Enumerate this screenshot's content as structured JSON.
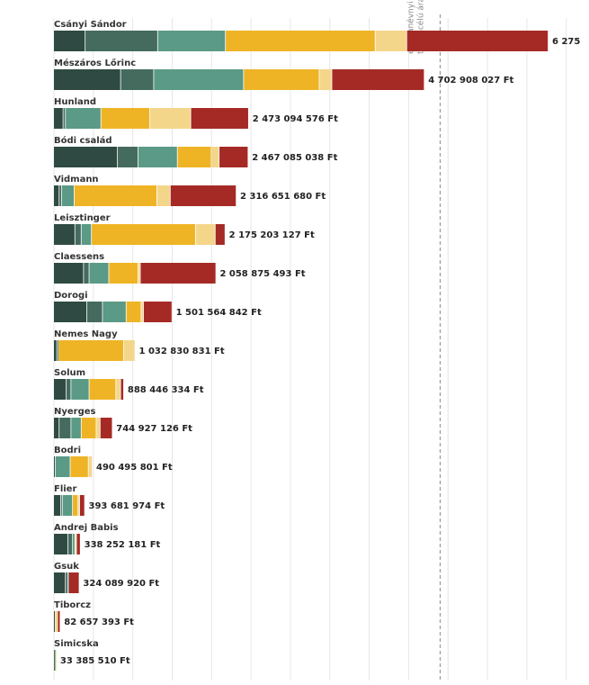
{
  "chart_data": {
    "type": "bar",
    "orientation": "horizontal",
    "stacked": true,
    "grid": true,
    "segment_colors": [
      "#2f4a42",
      "#456b5f",
      "#5a9a86",
      "#efb425",
      "#f4d68a",
      "#a52a25"
    ],
    "reference_line": {
      "value": 4900000000,
      "label": "egy tanévnyi sarkvizsga teremcélú ára",
      "style": "dashed",
      "color": "#999999"
    },
    "companies": [
      {
        "name": "Csányi Sándor",
        "total_label": "6 275",
        "total": 6275000000,
        "segments": [
          400000000,
          920000000,
          860000000,
          1900000000,
          400000000,
          1795000000
        ]
      },
      {
        "name": "Mészáros Lőrinc",
        "total_label": "4 702 908 027 Ft",
        "total": 4702908027,
        "segments": [
          850000000,
          420000000,
          1140000000,
          960000000,
          160000000,
          1172908027
        ]
      },
      {
        "name": "Hunland",
        "total_label": "2 473 094 576 Ft",
        "total": 2473094576,
        "segments": [
          120000000,
          30000000,
          450000000,
          620000000,
          520000000,
          733094576
        ]
      },
      {
        "name": "Bódi család",
        "total_label": "2 467 085 038 Ft",
        "total": 2467085038,
        "segments": [
          810000000,
          260000000,
          500000000,
          430000000,
          100000000,
          367085038
        ]
      },
      {
        "name": "Vidmann",
        "total_label": "2 316 651 680 Ft",
        "total": 2316651680,
        "segments": [
          70000000,
          30000000,
          160000000,
          1050000000,
          170000000,
          836651680
        ]
      },
      {
        "name": "Leisztinger",
        "total_label": "2 175 203 127 Ft",
        "total": 2175203127,
        "segments": [
          270000000,
          80000000,
          130000000,
          1320000000,
          250000000,
          125203127
        ]
      },
      {
        "name": "Claessens",
        "total_label": "2 058 875 493 Ft",
        "total": 2058875493,
        "segments": [
          380000000,
          70000000,
          250000000,
          370000000,
          30000000,
          958875493
        ]
      },
      {
        "name": "Dorogi",
        "total_label": "1 501 564 842 Ft",
        "total": 1501564842,
        "segments": [
          420000000,
          200000000,
          300000000,
          190000000,
          30000000,
          361564842
        ]
      },
      {
        "name": "Nemes Nagy",
        "total_label": "1 032 830 831 Ft",
        "total": 1032830831,
        "segments": [
          40000000,
          10000000,
          10000000,
          830000000,
          142830831,
          0
        ]
      },
      {
        "name": "Solum",
        "total_label": "888 446 334 Ft",
        "total": 888446334,
        "segments": [
          160000000,
          60000000,
          230000000,
          340000000,
          60000000,
          38446334
        ]
      },
      {
        "name": "Nyerges",
        "total_label": "744 927 126 Ft",
        "total": 744927126,
        "segments": [
          70000000,
          150000000,
          130000000,
          190000000,
          50000000,
          154927126
        ]
      },
      {
        "name": "Bodri",
        "total_label": "490 495 801 Ft",
        "total": 490495801,
        "segments": [
          20000000,
          0,
          190000000,
          230000000,
          50495801,
          0
        ]
      },
      {
        "name": "Flier",
        "total_label": "393 681 974 Ft",
        "total": 393681974,
        "segments": [
          90000000,
          20000000,
          130000000,
          70000000,
          20000000,
          63681974
        ]
      },
      {
        "name": "Andrej Babis",
        "total_label": "338 252 181 Ft",
        "total": 338252181,
        "segments": [
          180000000,
          60000000,
          30000000,
          0,
          20000000,
          48252181
        ]
      },
      {
        "name": "Gsuk",
        "total_label": "324 089 920 Ft",
        "total": 324089920,
        "segments": [
          150000000,
          30000000,
          10000000,
          0,
          0,
          134089920
        ]
      },
      {
        "name": "Tiborcz",
        "total_label": "82 657 393 Ft",
        "total": 82657393,
        "segments": [
          20000000,
          0,
          0,
          20000000,
          10000000,
          32657393
        ]
      },
      {
        "name": "Simicska",
        "total_label": "33 385 510 Ft",
        "total": 33385510,
        "segments": [
          10000000,
          0,
          10000000,
          0,
          13385510,
          0
        ]
      }
    ]
  }
}
